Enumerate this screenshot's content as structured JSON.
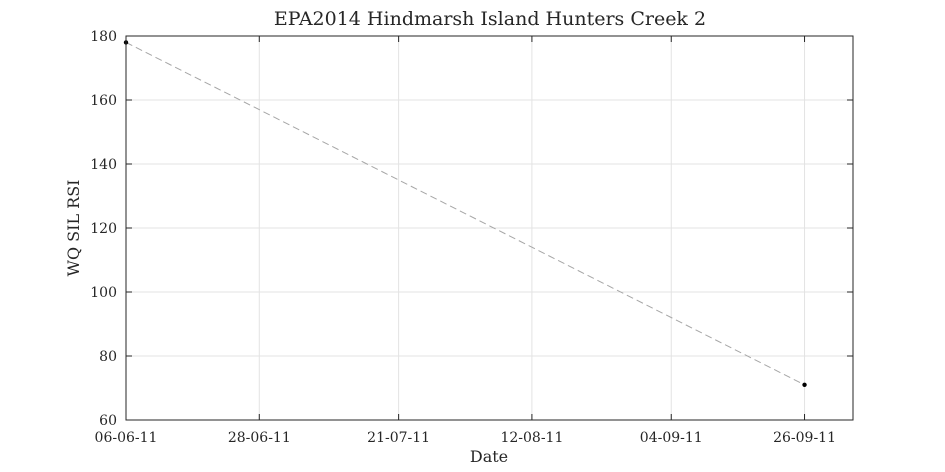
{
  "chart_data": {
    "type": "line",
    "title": "EPA2014 Hindmarsh Island Hunters Creek 2",
    "xlabel": "Date",
    "ylabel": "WQ SIL RSI",
    "x_ticks": [
      "06-06-11",
      "28-06-11",
      "21-07-11",
      "12-08-11",
      "04-09-11",
      "26-09-11"
    ],
    "x_tick_dates": [
      "2011-06-06",
      "2011-06-28",
      "2011-07-21",
      "2011-08-12",
      "2011-09-04",
      "2011-09-26"
    ],
    "xlim": [
      "2011-06-06",
      "2011-10-04"
    ],
    "ylim": [
      60,
      180
    ],
    "y_ticks": [
      60,
      80,
      100,
      120,
      140,
      160,
      180
    ],
    "grid": true,
    "series": [
      {
        "x": [
          "2011-06-06",
          "2011-09-26"
        ],
        "values": [
          178,
          71
        ],
        "line_style": "dashed",
        "line_color": "#a6a6a6",
        "marker_color": "#000000"
      }
    ]
  }
}
